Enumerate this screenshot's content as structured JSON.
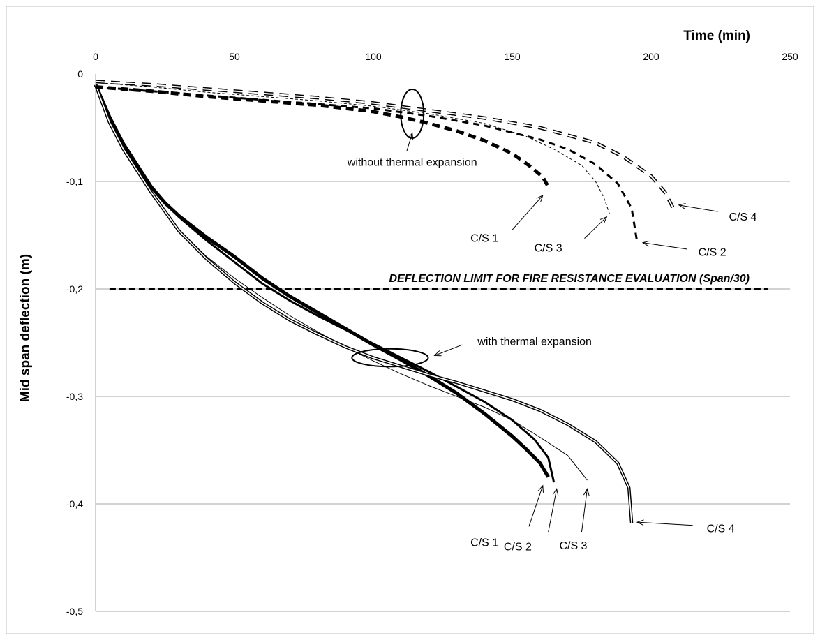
{
  "chart_data": {
    "type": "line",
    "xlabel": "Time (min)",
    "ylabel": "Mid span deflection (m)",
    "xlim": [
      0,
      250
    ],
    "ylim": [
      -0.5,
      0
    ],
    "x_ticks": [
      "0",
      "50",
      "100",
      "150",
      "200",
      "250"
    ],
    "y_ticks": [
      "0",
      "-0,1",
      "-0,2",
      "-0,3",
      "-0,4",
      "-0,5"
    ],
    "x_axis_position": "top",
    "grid": "horizontal",
    "deflection_limit": {
      "label": "DEFLECTION LIMIT FOR FIRE RESISTANCE EVALUATION (Span/30)",
      "y": -0.2,
      "x_range": [
        5,
        242
      ]
    },
    "series": [
      {
        "name": "C/S 1",
        "group": "with thermal expansion",
        "style": "thick-solid",
        "points": [
          [
            0,
            -0.01
          ],
          [
            5,
            -0.04
          ],
          [
            10,
            -0.065
          ],
          [
            15,
            -0.085
          ],
          [
            20,
            -0.105
          ],
          [
            25,
            -0.12
          ],
          [
            30,
            -0.132
          ],
          [
            40,
            -0.152
          ],
          [
            50,
            -0.17
          ],
          [
            60,
            -0.19
          ],
          [
            70,
            -0.207
          ],
          [
            80,
            -0.222
          ],
          [
            90,
            -0.237
          ],
          [
            100,
            -0.252
          ],
          [
            110,
            -0.266
          ],
          [
            120,
            -0.281
          ],
          [
            130,
            -0.297
          ],
          [
            140,
            -0.316
          ],
          [
            150,
            -0.337
          ],
          [
            155,
            -0.349
          ],
          [
            160,
            -0.362
          ],
          [
            163,
            -0.375
          ]
        ]
      },
      {
        "name": "C/S 2",
        "group": "with thermal expansion",
        "style": "solid",
        "points": [
          [
            0,
            -0.01
          ],
          [
            5,
            -0.04
          ],
          [
            10,
            -0.065
          ],
          [
            15,
            -0.085
          ],
          [
            20,
            -0.105
          ],
          [
            25,
            -0.12
          ],
          [
            30,
            -0.133
          ],
          [
            40,
            -0.155
          ],
          [
            50,
            -0.175
          ],
          [
            60,
            -0.195
          ],
          [
            70,
            -0.211
          ],
          [
            80,
            -0.225
          ],
          [
            90,
            -0.238
          ],
          [
            100,
            -0.251
          ],
          [
            110,
            -0.264
          ],
          [
            120,
            -0.277
          ],
          [
            130,
            -0.291
          ],
          [
            140,
            -0.305
          ],
          [
            150,
            -0.322
          ],
          [
            158,
            -0.34
          ],
          [
            163,
            -0.357
          ],
          [
            165,
            -0.38
          ]
        ]
      },
      {
        "name": "C/S 3",
        "group": "with thermal expansion",
        "style": "thin-solid",
        "points": [
          [
            0,
            -0.01
          ],
          [
            5,
            -0.045
          ],
          [
            10,
            -0.07
          ],
          [
            15,
            -0.09
          ],
          [
            20,
            -0.11
          ],
          [
            25,
            -0.127
          ],
          [
            30,
            -0.145
          ],
          [
            40,
            -0.17
          ],
          [
            50,
            -0.19
          ],
          [
            60,
            -0.208
          ],
          [
            70,
            -0.225
          ],
          [
            80,
            -0.24
          ],
          [
            90,
            -0.254
          ],
          [
            100,
            -0.267
          ],
          [
            110,
            -0.279
          ],
          [
            120,
            -0.29
          ],
          [
            130,
            -0.3
          ],
          [
            140,
            -0.31
          ],
          [
            150,
            -0.322
          ],
          [
            160,
            -0.338
          ],
          [
            170,
            -0.355
          ],
          [
            177,
            -0.378
          ]
        ]
      },
      {
        "name": "C/S 4",
        "group": "with thermal expansion",
        "style": "double-line",
        "points": [
          [
            0,
            -0.01
          ],
          [
            5,
            -0.045
          ],
          [
            10,
            -0.07
          ],
          [
            15,
            -0.09
          ],
          [
            20,
            -0.11
          ],
          [
            25,
            -0.128
          ],
          [
            30,
            -0.146
          ],
          [
            40,
            -0.172
          ],
          [
            50,
            -0.194
          ],
          [
            60,
            -0.213
          ],
          [
            70,
            -0.229
          ],
          [
            80,
            -0.242
          ],
          [
            90,
            -0.254
          ],
          [
            100,
            -0.264
          ],
          [
            110,
            -0.272
          ],
          [
            120,
            -0.28
          ],
          [
            130,
            -0.287
          ],
          [
            140,
            -0.295
          ],
          [
            150,
            -0.303
          ],
          [
            160,
            -0.313
          ],
          [
            170,
            -0.326
          ],
          [
            180,
            -0.342
          ],
          [
            188,
            -0.362
          ],
          [
            192,
            -0.385
          ],
          [
            193,
            -0.418
          ]
        ]
      },
      {
        "name": "C/S 1",
        "group": "without thermal expansion",
        "style": "thick-dashed",
        "points": [
          [
            0,
            -0.012
          ],
          [
            20,
            -0.016
          ],
          [
            40,
            -0.021
          ],
          [
            60,
            -0.025
          ],
          [
            80,
            -0.029
          ],
          [
            100,
            -0.035
          ],
          [
            110,
            -0.04
          ],
          [
            120,
            -0.046
          ],
          [
            130,
            -0.053
          ],
          [
            140,
            -0.062
          ],
          [
            150,
            -0.074
          ],
          [
            156,
            -0.085
          ],
          [
            161,
            -0.096
          ],
          [
            163,
            -0.105
          ]
        ]
      },
      {
        "name": "C/S 2",
        "group": "without thermal expansion",
        "style": "dashed",
        "points": [
          [
            0,
            -0.012
          ],
          [
            20,
            -0.016
          ],
          [
            40,
            -0.02
          ],
          [
            60,
            -0.024
          ],
          [
            80,
            -0.028
          ],
          [
            100,
            -0.032
          ],
          [
            120,
            -0.039
          ],
          [
            140,
            -0.048
          ],
          [
            160,
            -0.061
          ],
          [
            170,
            -0.07
          ],
          [
            180,
            -0.084
          ],
          [
            188,
            -0.102
          ],
          [
            193,
            -0.125
          ],
          [
            195,
            -0.157
          ]
        ]
      },
      {
        "name": "C/S 3",
        "group": "without thermal expansion",
        "style": "thin-dashed",
        "points": [
          [
            0,
            -0.008
          ],
          [
            20,
            -0.012
          ],
          [
            40,
            -0.017
          ],
          [
            60,
            -0.021
          ],
          [
            80,
            -0.025
          ],
          [
            100,
            -0.03
          ],
          [
            120,
            -0.037
          ],
          [
            140,
            -0.046
          ],
          [
            155,
            -0.058
          ],
          [
            165,
            -0.07
          ],
          [
            175,
            -0.085
          ],
          [
            180,
            -0.1
          ],
          [
            183,
            -0.115
          ],
          [
            185,
            -0.13
          ]
        ]
      },
      {
        "name": "C/S 4",
        "group": "without thermal expansion",
        "style": "double-dashed",
        "points": [
          [
            0,
            -0.007
          ],
          [
            20,
            -0.01
          ],
          [
            40,
            -0.014
          ],
          [
            60,
            -0.018
          ],
          [
            80,
            -0.022
          ],
          [
            100,
            -0.027
          ],
          [
            120,
            -0.034
          ],
          [
            140,
            -0.041
          ],
          [
            160,
            -0.05
          ],
          [
            180,
            -0.064
          ],
          [
            190,
            -0.077
          ],
          [
            200,
            -0.095
          ],
          [
            205,
            -0.11
          ],
          [
            208,
            -0.125
          ]
        ]
      }
    ],
    "annotations": [
      {
        "text": "without thermal expansion",
        "ellipse_center": [
          114,
          -0.037
        ]
      },
      {
        "text": "with thermal expansion",
        "ellipse_center": [
          106,
          -0.264
        ]
      },
      {
        "text": "C/S 1",
        "points_to": [
          163,
          -0.105
        ]
      },
      {
        "text": "C/S 3",
        "points_to": [
          185,
          -0.13
        ]
      },
      {
        "text": "C/S 2",
        "points_to": [
          195,
          -0.157
        ]
      },
      {
        "text": "C/S 4",
        "points_to": [
          208,
          -0.125
        ]
      },
      {
        "text": "C/S 1",
        "points_to": [
          163,
          -0.377
        ]
      },
      {
        "text": "C/S 2",
        "points_to": [
          165,
          -0.38
        ]
      },
      {
        "text": "C/S 3",
        "points_to": [
          177,
          -0.38
        ]
      },
      {
        "text": "C/S 4",
        "points_to": [
          193,
          -0.418
        ]
      }
    ]
  }
}
